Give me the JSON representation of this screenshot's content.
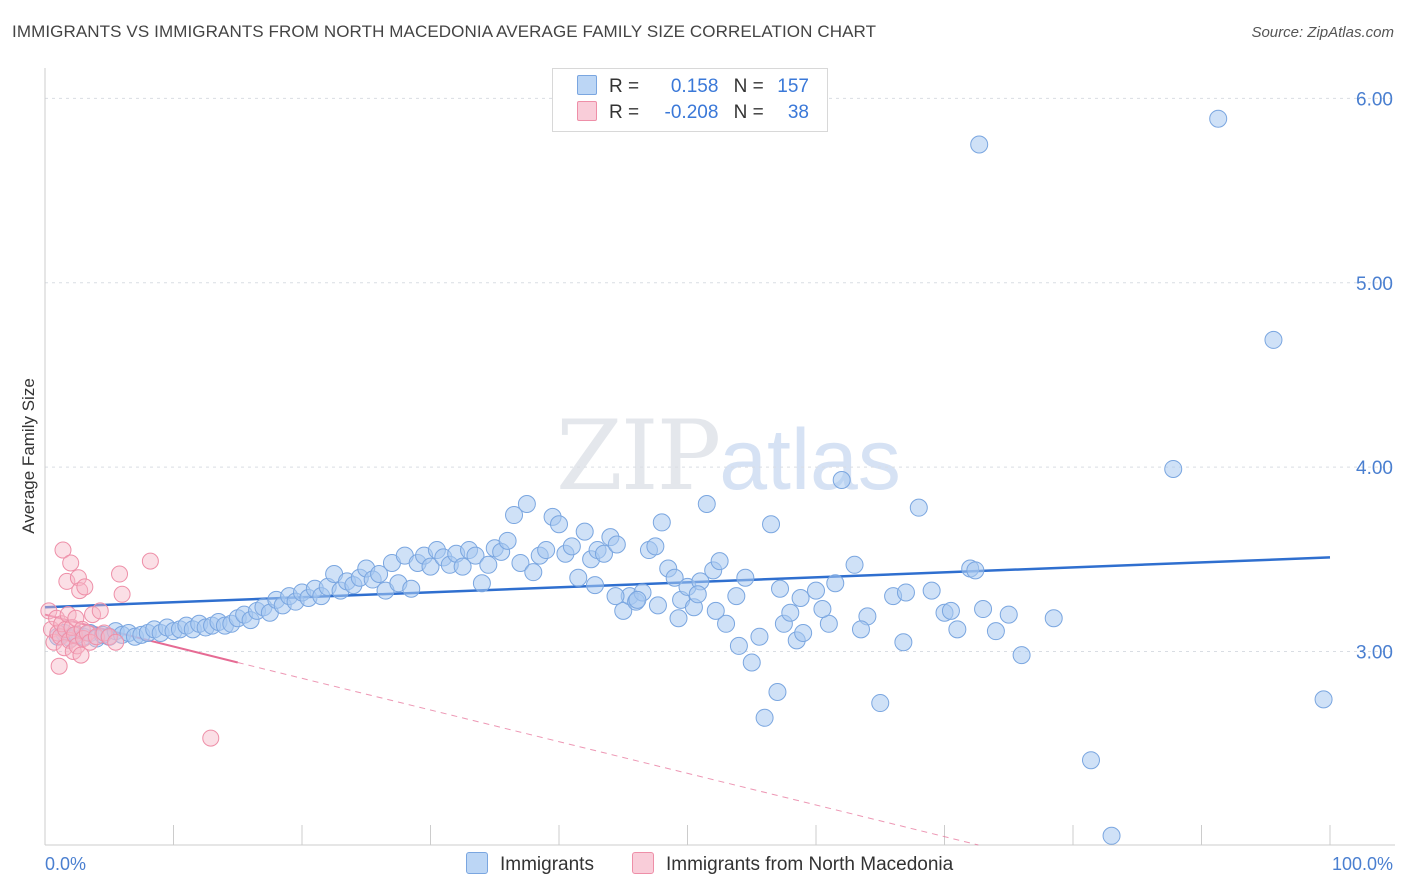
{
  "header": {
    "title": "IMMIGRANTS VS IMMIGRANTS FROM NORTH MACEDONIA AVERAGE FAMILY SIZE CORRELATION CHART",
    "source": "Source: ZipAtlas.com"
  },
  "watermark": {
    "zip": "ZIP",
    "atlas": "atlas"
  },
  "legend": {
    "rows": [
      {
        "r_label": "R =",
        "r_value": "0.158",
        "n_label": "N =",
        "n_value": "157",
        "color": "#a8c8f0"
      },
      {
        "r_label": "R =",
        "r_value": "-0.208",
        "n_label": "N =",
        "n_value": "38",
        "color": "#f6b8c8"
      }
    ]
  },
  "bottom_legend": {
    "immigrants": "Immigrants",
    "north_macedonia": "Immigrants from North Macedonia"
  },
  "chart_data": {
    "type": "scatter",
    "title": "IMMIGRANTS VS IMMIGRANTS FROM NORTH MACEDONIA AVERAGE FAMILY SIZE CORRELATION CHART",
    "ylabel": "Average Family Size",
    "xlabel": "",
    "xlim": [
      0,
      100
    ],
    "ylim": [
      1.95,
      6.1
    ],
    "x_tick_labels": [
      "0.0%",
      "100.0%"
    ],
    "y_ticks": [
      3.0,
      4.0,
      5.0,
      6.0
    ],
    "y_tick_labels": [
      "3.00",
      "4.00",
      "5.00",
      "6.00"
    ],
    "grid": true,
    "series": [
      {
        "name": "Immigrants",
        "color": "#a8c8f0",
        "stroke": "#7aa6e0",
        "trend": {
          "x": [
            0,
            100
          ],
          "y": [
            3.24,
            3.51
          ],
          "color": "#2f6fcf"
        },
        "points": [
          [
            1.0,
            3.08
          ],
          [
            1.5,
            3.1
          ],
          [
            2.0,
            3.07
          ],
          [
            2.5,
            3.09
          ],
          [
            3.0,
            3.08
          ],
          [
            3.5,
            3.1
          ],
          [
            4.0,
            3.07
          ],
          [
            4.5,
            3.09
          ],
          [
            5.0,
            3.08
          ],
          [
            5.5,
            3.11
          ],
          [
            6.0,
            3.09
          ],
          [
            6.5,
            3.1
          ],
          [
            7.0,
            3.08
          ],
          [
            7.5,
            3.09
          ],
          [
            8.0,
            3.1
          ],
          [
            8.5,
            3.12
          ],
          [
            9.0,
            3.1
          ],
          [
            9.5,
            3.13
          ],
          [
            10.0,
            3.11
          ],
          [
            10.5,
            3.12
          ],
          [
            11.0,
            3.14
          ],
          [
            11.5,
            3.12
          ],
          [
            12.0,
            3.15
          ],
          [
            12.5,
            3.13
          ],
          [
            13.0,
            3.14
          ],
          [
            13.5,
            3.16
          ],
          [
            14.0,
            3.14
          ],
          [
            14.5,
            3.15
          ],
          [
            15.0,
            3.18
          ],
          [
            15.5,
            3.2
          ],
          [
            16.0,
            3.17
          ],
          [
            16.5,
            3.22
          ],
          [
            17.0,
            3.24
          ],
          [
            17.5,
            3.21
          ],
          [
            18.0,
            3.28
          ],
          [
            18.5,
            3.25
          ],
          [
            19.0,
            3.3
          ],
          [
            19.5,
            3.27
          ],
          [
            20.0,
            3.32
          ],
          [
            20.5,
            3.29
          ],
          [
            21.0,
            3.34
          ],
          [
            21.5,
            3.3
          ],
          [
            22.0,
            3.35
          ],
          [
            22.5,
            3.42
          ],
          [
            23.0,
            3.33
          ],
          [
            23.5,
            3.38
          ],
          [
            24.0,
            3.36
          ],
          [
            24.5,
            3.4
          ],
          [
            25.0,
            3.45
          ],
          [
            25.5,
            3.39
          ],
          [
            26.0,
            3.42
          ],
          [
            26.5,
            3.33
          ],
          [
            27.0,
            3.48
          ],
          [
            27.5,
            3.37
          ],
          [
            28.0,
            3.52
          ],
          [
            28.5,
            3.34
          ],
          [
            29.0,
            3.48
          ],
          [
            29.5,
            3.52
          ],
          [
            30.0,
            3.46
          ],
          [
            30.5,
            3.55
          ],
          [
            31.0,
            3.51
          ],
          [
            31.5,
            3.47
          ],
          [
            32.0,
            3.53
          ],
          [
            32.5,
            3.46
          ],
          [
            33.0,
            3.55
          ],
          [
            33.5,
            3.52
          ],
          [
            34.0,
            3.37
          ],
          [
            34.5,
            3.47
          ],
          [
            35.0,
            3.56
          ],
          [
            35.5,
            3.54
          ],
          [
            36.0,
            3.6
          ],
          [
            36.5,
            3.74
          ],
          [
            37.0,
            3.48
          ],
          [
            37.5,
            3.8
          ],
          [
            38.0,
            3.43
          ],
          [
            38.5,
            3.52
          ],
          [
            39.0,
            3.55
          ],
          [
            39.5,
            3.73
          ],
          [
            40.0,
            3.69
          ],
          [
            40.5,
            3.53
          ],
          [
            41.0,
            3.57
          ],
          [
            41.5,
            3.4
          ],
          [
            42.0,
            3.65
          ],
          [
            42.5,
            3.5
          ],
          [
            43.0,
            3.55
          ],
          [
            43.5,
            3.53
          ],
          [
            44.0,
            3.62
          ],
          [
            44.5,
            3.58
          ],
          [
            45.0,
            3.22
          ],
          [
            45.5,
            3.3
          ],
          [
            46.0,
            3.27
          ],
          [
            46.5,
            3.32
          ],
          [
            47.0,
            3.55
          ],
          [
            47.5,
            3.57
          ],
          [
            48.0,
            3.7
          ],
          [
            48.5,
            3.45
          ],
          [
            49.0,
            3.4
          ],
          [
            49.5,
            3.28
          ],
          [
            50.0,
            3.35
          ],
          [
            50.5,
            3.24
          ],
          [
            51.0,
            3.38
          ],
          [
            51.5,
            3.8
          ],
          [
            52.0,
            3.44
          ],
          [
            52.5,
            3.49
          ],
          [
            53.0,
            3.15
          ],
          [
            54.0,
            3.03
          ],
          [
            54.5,
            3.4
          ],
          [
            55.0,
            2.94
          ],
          [
            56.0,
            2.64
          ],
          [
            56.5,
            3.69
          ],
          [
            57.0,
            2.78
          ],
          [
            57.5,
            3.15
          ],
          [
            58.0,
            3.21
          ],
          [
            58.5,
            3.06
          ],
          [
            59.0,
            3.1
          ],
          [
            60.0,
            3.33
          ],
          [
            61.0,
            3.15
          ],
          [
            61.5,
            3.37
          ],
          [
            62.0,
            3.93
          ],
          [
            63.0,
            3.47
          ],
          [
            64.0,
            3.19
          ],
          [
            65.0,
            2.72
          ],
          [
            66.0,
            3.3
          ],
          [
            67.0,
            3.32
          ],
          [
            68.0,
            3.78
          ],
          [
            69.0,
            3.33
          ],
          [
            70.0,
            3.21
          ],
          [
            71.0,
            3.12
          ],
          [
            72.0,
            3.45
          ],
          [
            73.0,
            3.23
          ],
          [
            74.0,
            3.11
          ],
          [
            75.0,
            3.2
          ],
          [
            76.0,
            2.98
          ],
          [
            72.7,
            5.75
          ],
          [
            91.3,
            5.89
          ],
          [
            95.6,
            4.69
          ],
          [
            87.8,
            3.99
          ],
          [
            99.5,
            2.74
          ],
          [
            81.4,
            2.41
          ],
          [
            72.4,
            3.44
          ],
          [
            78.5,
            3.18
          ],
          [
            83.0,
            2.0
          ],
          [
            70.5,
            3.22
          ],
          [
            66.8,
            3.05
          ],
          [
            63.5,
            3.12
          ],
          [
            60.5,
            3.23
          ],
          [
            58.8,
            3.29
          ],
          [
            57.2,
            3.34
          ],
          [
            55.6,
            3.08
          ],
          [
            53.8,
            3.3
          ],
          [
            52.2,
            3.22
          ],
          [
            50.8,
            3.31
          ],
          [
            49.3,
            3.18
          ],
          [
            47.7,
            3.25
          ],
          [
            46.1,
            3.28
          ],
          [
            44.4,
            3.3
          ],
          [
            42.8,
            3.36
          ]
        ]
      },
      {
        "name": "Immigrants from North Macedonia",
        "color": "#f6b8c8",
        "stroke": "#ee8fa8",
        "trend": {
          "x": [
            0,
            15
          ],
          "y": [
            3.2,
            2.94
          ],
          "color": "#e66b94",
          "dash_to": [
            100,
            1.48
          ]
        },
        "points": [
          [
            0.3,
            3.22
          ],
          [
            0.5,
            3.12
          ],
          [
            0.7,
            3.05
          ],
          [
            0.9,
            3.18
          ],
          [
            1.0,
            3.1
          ],
          [
            1.1,
            2.92
          ],
          [
            1.2,
            3.08
          ],
          [
            1.3,
            3.15
          ],
          [
            1.4,
            3.55
          ],
          [
            1.5,
            3.02
          ],
          [
            1.6,
            3.12
          ],
          [
            1.7,
            3.38
          ],
          [
            1.8,
            3.2
          ],
          [
            1.9,
            3.06
          ],
          [
            2.0,
            3.48
          ],
          [
            2.1,
            3.13
          ],
          [
            2.2,
            3.0
          ],
          [
            2.3,
            3.09
          ],
          [
            2.4,
            3.18
          ],
          [
            2.5,
            3.03
          ],
          [
            2.6,
            3.4
          ],
          [
            2.7,
            3.33
          ],
          [
            2.8,
            2.98
          ],
          [
            2.9,
            3.12
          ],
          [
            3.0,
            3.07
          ],
          [
            3.1,
            3.35
          ],
          [
            3.3,
            3.1
          ],
          [
            3.5,
            3.05
          ],
          [
            3.7,
            3.2
          ],
          [
            4.0,
            3.08
          ],
          [
            4.3,
            3.22
          ],
          [
            4.6,
            3.1
          ],
          [
            5.0,
            3.08
          ],
          [
            5.5,
            3.05
          ],
          [
            5.8,
            3.42
          ],
          [
            6.0,
            3.31
          ],
          [
            8.2,
            3.49
          ],
          [
            12.9,
            2.53
          ]
        ]
      }
    ]
  }
}
